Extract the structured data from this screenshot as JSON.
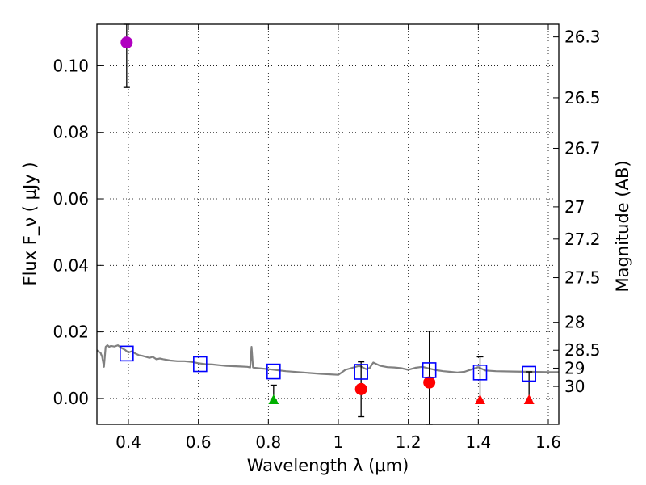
{
  "chart_data": {
    "type": "scatter",
    "title": "",
    "xlabel": "Wavelength  λ (μm)",
    "ylabel": "Flux  F_ν  ( μJy )",
    "ylabel_right": "Magnitude (AB)",
    "xlim": [
      0.31,
      1.63
    ],
    "ylim": [
      -0.0078,
      0.1125
    ],
    "grid": true,
    "x_ticks": [
      0.4,
      0.6,
      0.8,
      1.0,
      1.2,
      1.4,
      1.6
    ],
    "x_tick_labels": [
      "0.4",
      "0.6",
      "0.8",
      "1",
      "1.2",
      "1.4",
      "1.6"
    ],
    "y_ticks": [
      0.0,
      0.02,
      0.04,
      0.06,
      0.08,
      0.1
    ],
    "y_tick_labels": [
      "0.00",
      "0.02",
      "0.04",
      "0.06",
      "0.08",
      "0.10"
    ],
    "magnitude_ticks": [
      {
        "label": "26.3",
        "flux": 0.1087
      },
      {
        "label": "26.5",
        "flux": 0.0904
      },
      {
        "label": "26.7",
        "flux": 0.0752
      },
      {
        "label": "27",
        "flux": 0.0576
      },
      {
        "label": "27.2",
        "flux": 0.0479
      },
      {
        "label": "27.5",
        "flux": 0.0363
      },
      {
        "label": "28",
        "flux": 0.0229
      },
      {
        "label": "28.5",
        "flux": 0.0145
      },
      {
        "label": "29",
        "flux": 0.0091
      },
      {
        "label": "30",
        "flux": 0.0036
      }
    ],
    "model_spectrum": {
      "name": "model SED",
      "color": "#808080",
      "x": [
        0.31,
        0.315,
        0.32,
        0.325,
        0.33,
        0.335,
        0.34,
        0.345,
        0.35,
        0.36,
        0.37,
        0.38,
        0.39,
        0.4,
        0.41,
        0.42,
        0.43,
        0.44,
        0.45,
        0.46,
        0.47,
        0.48,
        0.49,
        0.5,
        0.52,
        0.54,
        0.56,
        0.58,
        0.6,
        0.62,
        0.64,
        0.66,
        0.68,
        0.7,
        0.72,
        0.74,
        0.748,
        0.752,
        0.756,
        0.76,
        0.78,
        0.8,
        0.85,
        0.9,
        0.95,
        1.0,
        1.02,
        1.04,
        1.06,
        1.08,
        1.09,
        1.1,
        1.12,
        1.14,
        1.16,
        1.18,
        1.2,
        1.22,
        1.24,
        1.26,
        1.28,
        1.3,
        1.32,
        1.34,
        1.36,
        1.38,
        1.4,
        1.42,
        1.45,
        1.5,
        1.55,
        1.6,
        1.63
      ],
      "y": [
        0.0145,
        0.014,
        0.0138,
        0.0125,
        0.0095,
        0.0155,
        0.016,
        0.0155,
        0.0158,
        0.0156,
        0.016,
        0.0152,
        0.0146,
        0.0138,
        0.0142,
        0.0135,
        0.013,
        0.0128,
        0.0125,
        0.0122,
        0.0125,
        0.0118,
        0.012,
        0.0118,
        0.0114,
        0.0112,
        0.0112,
        0.011,
        0.0106,
        0.0103,
        0.0102,
        0.01,
        0.0098,
        0.0097,
        0.0096,
        0.0095,
        0.0093,
        0.0155,
        0.0093,
        0.0092,
        0.009,
        0.0088,
        0.0082,
        0.0078,
        0.0074,
        0.0071,
        0.0086,
        0.0092,
        0.0098,
        0.0088,
        0.0092,
        0.0108,
        0.0098,
        0.0094,
        0.0093,
        0.0091,
        0.0086,
        0.0092,
        0.0095,
        0.009,
        0.0085,
        0.0082,
        0.008,
        0.0078,
        0.008,
        0.0087,
        0.0094,
        0.0084,
        0.0082,
        0.0081,
        0.008,
        0.0079,
        0.0079
      ]
    },
    "series": [
      {
        "name": "observed (violet)",
        "color": "#b000c0",
        "marker": "circle",
        "points": [
          {
            "x": 0.395,
            "y": 0.107,
            "ylo": 0.0935,
            "yhi": 0.1125
          }
        ]
      },
      {
        "name": "observed (red)",
        "color": "#ff0000",
        "marker": "circle",
        "points": [
          {
            "x": 1.065,
            "y": 0.0028,
            "ylo": -0.0055,
            "yhi": 0.011
          },
          {
            "x": 1.26,
            "y": 0.0048,
            "ylo": -0.0078,
            "yhi": 0.0202
          }
        ]
      },
      {
        "name": "upper limits (green)",
        "color": "#00b000",
        "marker": "triangle",
        "points": [
          {
            "x": 0.815,
            "y": -0.0005,
            "ylo": -0.0005,
            "yhi": 0.004
          }
        ]
      },
      {
        "name": "upper limits (red)",
        "color": "#ff0000",
        "marker": "triangle",
        "points": [
          {
            "x": 1.405,
            "y": -0.0005,
            "ylo": -0.0005,
            "yhi": 0.0125
          },
          {
            "x": 1.545,
            "y": -0.0005,
            "ylo": -0.0005,
            "yhi": 0.008
          }
        ]
      },
      {
        "name": "model photometry",
        "color": "#0000ff",
        "marker": "square-open",
        "points": [
          {
            "x": 0.395,
            "y": 0.0135
          },
          {
            "x": 0.605,
            "y": 0.0103
          },
          {
            "x": 0.815,
            "y": 0.0081
          },
          {
            "x": 1.065,
            "y": 0.008
          },
          {
            "x": 1.26,
            "y": 0.0085
          },
          {
            "x": 1.405,
            "y": 0.0078
          },
          {
            "x": 1.545,
            "y": 0.0074
          }
        ]
      }
    ]
  }
}
